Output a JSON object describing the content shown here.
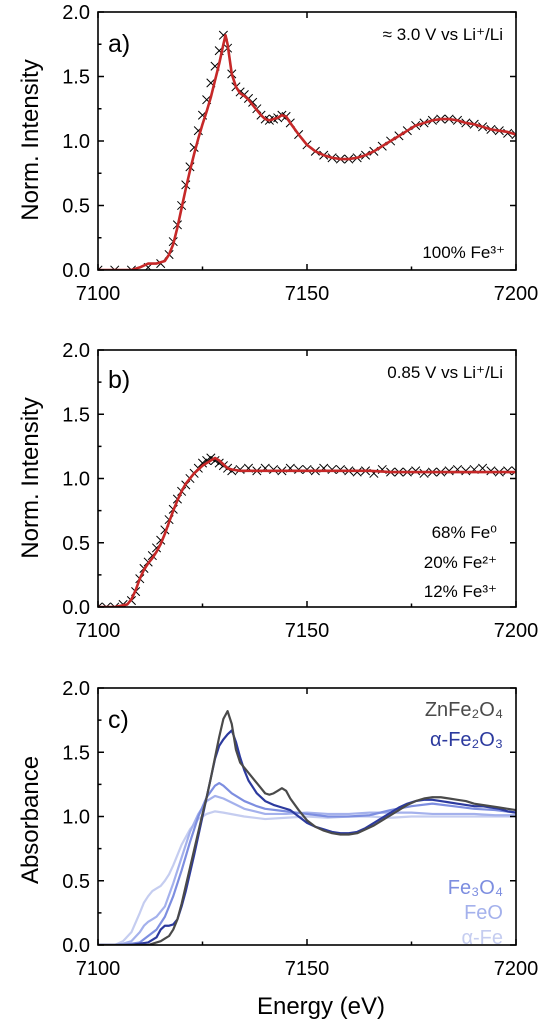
{
  "chart_data": [
    {
      "type": "scatter",
      "panel_label": "a)",
      "ylabel": "Norm. Intensity",
      "xlabel": "",
      "xlim": [
        7100,
        7200
      ],
      "ylim": [
        0,
        2
      ],
      "xticks": [
        "7100",
        "7150",
        "7200"
      ],
      "yticks": [
        "0.0",
        "0.5",
        "1.0",
        "1.5",
        "2.0"
      ],
      "annotations": [
        {
          "text": "≈ 3.0 V vs  Li⁺/Li",
          "position": "top-right"
        },
        {
          "text": "100% Fe³⁺",
          "position": "bottom-right"
        }
      ],
      "series": [
        {
          "style": "markers-x",
          "color": "#000000",
          "x": [
            7100,
            7104,
            7108,
            7112,
            7115,
            7117,
            7118,
            7119,
            7120,
            7121,
            7122,
            7123,
            7124,
            7125,
            7126,
            7127,
            7128,
            7129,
            7130,
            7131,
            7132,
            7133,
            7134,
            7135,
            7136,
            7137,
            7138,
            7139,
            7140,
            7141,
            7142,
            7143,
            7144,
            7145,
            7146,
            7148,
            7150,
            7152,
            7154,
            7156,
            7158,
            7160,
            7162,
            7164,
            7166,
            7168,
            7170,
            7172,
            7174,
            7176,
            7178,
            7180,
            7182,
            7184,
            7186,
            7188,
            7190,
            7192,
            7194,
            7196,
            7198,
            7200
          ],
          "y": [
            0.0,
            0.0,
            0.0,
            0.02,
            0.05,
            0.12,
            0.22,
            0.35,
            0.5,
            0.66,
            0.8,
            0.95,
            1.08,
            1.2,
            1.32,
            1.45,
            1.58,
            1.7,
            1.82,
            1.72,
            1.52,
            1.42,
            1.38,
            1.36,
            1.33,
            1.3,
            1.25,
            1.2,
            1.17,
            1.16,
            1.17,
            1.18,
            1.2,
            1.19,
            1.14,
            1.05,
            0.97,
            0.92,
            0.89,
            0.87,
            0.86,
            0.86,
            0.87,
            0.89,
            0.92,
            0.96,
            1.0,
            1.04,
            1.08,
            1.12,
            1.14,
            1.16,
            1.17,
            1.17,
            1.16,
            1.14,
            1.13,
            1.11,
            1.09,
            1.08,
            1.06,
            1.05
          ]
        },
        {
          "style": "line",
          "color": "#c62828",
          "x": [
            7100,
            7104,
            7108,
            7110,
            7112,
            7114,
            7116,
            7117,
            7118,
            7119,
            7120,
            7121,
            7122,
            7123,
            7124,
            7125,
            7126,
            7127,
            7128,
            7129,
            7130,
            7130.5,
            7131,
            7132,
            7133,
            7134,
            7135,
            7136,
            7137,
            7138,
            7139,
            7140,
            7141,
            7142,
            7143,
            7144,
            7145,
            7146,
            7148,
            7150,
            7152,
            7154,
            7156,
            7158,
            7160,
            7162,
            7164,
            7166,
            7168,
            7170,
            7172,
            7174,
            7176,
            7178,
            7180,
            7182,
            7184,
            7186,
            7188,
            7190,
            7192,
            7194,
            7196,
            7198,
            7200
          ],
          "y": [
            0.0,
            0.0,
            0.0,
            0.02,
            0.05,
            0.05,
            0.07,
            0.12,
            0.2,
            0.33,
            0.48,
            0.63,
            0.77,
            0.9,
            1.02,
            1.13,
            1.23,
            1.34,
            1.47,
            1.6,
            1.75,
            1.82,
            1.75,
            1.52,
            1.42,
            1.37,
            1.35,
            1.32,
            1.28,
            1.24,
            1.2,
            1.17,
            1.16,
            1.17,
            1.18,
            1.2,
            1.19,
            1.14,
            1.05,
            0.97,
            0.92,
            0.89,
            0.87,
            0.86,
            0.86,
            0.87,
            0.89,
            0.92,
            0.96,
            1.0,
            1.04,
            1.08,
            1.12,
            1.14,
            1.16,
            1.17,
            1.17,
            1.16,
            1.14,
            1.13,
            1.11,
            1.09,
            1.08,
            1.07,
            1.05
          ]
        }
      ]
    },
    {
      "type": "scatter",
      "panel_label": "b)",
      "ylabel": "Norm. Intensity",
      "xlabel": "",
      "xlim": [
        7100,
        7200
      ],
      "ylim": [
        0,
        2
      ],
      "xticks": [
        "7100",
        "7150",
        "7200"
      ],
      "yticks": [
        "0.0",
        "0.5",
        "1.0",
        "1.5",
        "2.0"
      ],
      "annotations": [
        {
          "text": "0.85 V vs  Li⁺/Li",
          "position": "top-right"
        },
        {
          "text": "68% Fe⁰",
          "position": "right"
        },
        {
          "text": "20% Fe²⁺",
          "position": "right"
        },
        {
          "text": "12% Fe³⁺",
          "position": "bottom-right"
        }
      ],
      "series": [
        {
          "style": "markers-x",
          "color": "#000000",
          "x": [
            7100,
            7102,
            7104,
            7106,
            7108,
            7109,
            7110,
            7111,
            7112,
            7113,
            7114,
            7115,
            7116,
            7117,
            7118,
            7119,
            7120,
            7121,
            7122,
            7123,
            7124,
            7125,
            7126,
            7127,
            7128,
            7129,
            7130,
            7131,
            7132,
            7134,
            7136,
            7138,
            7140,
            7142,
            7144,
            7146,
            7148,
            7150,
            7152,
            7154,
            7156,
            7158,
            7160,
            7162,
            7164,
            7166,
            7168,
            7170,
            7172,
            7174,
            7176,
            7178,
            7180,
            7182,
            7184,
            7186,
            7188,
            7190,
            7192,
            7194,
            7196,
            7198,
            7200
          ],
          "y": [
            0.0,
            0.0,
            0.0,
            0.02,
            0.05,
            0.12,
            0.22,
            0.3,
            0.35,
            0.4,
            0.46,
            0.52,
            0.6,
            0.68,
            0.76,
            0.84,
            0.9,
            0.95,
            1.0,
            1.04,
            1.08,
            1.12,
            1.14,
            1.16,
            1.14,
            1.12,
            1.1,
            1.08,
            1.06,
            1.07,
            1.08,
            1.06,
            1.08,
            1.07,
            1.06,
            1.08,
            1.07,
            1.07,
            1.06,
            1.08,
            1.07,
            1.07,
            1.06,
            1.05,
            1.06,
            1.04,
            1.07,
            1.05,
            1.05,
            1.05,
            1.06,
            1.04,
            1.05,
            1.05,
            1.06,
            1.07,
            1.06,
            1.07,
            1.08,
            1.06,
            1.05,
            1.06,
            1.06
          ]
        },
        {
          "style": "line",
          "color": "#c62828",
          "x": [
            7100,
            7104,
            7107,
            7108,
            7109,
            7110,
            7111,
            7112,
            7113,
            7114,
            7115,
            7116,
            7117,
            7118,
            7119,
            7120,
            7121,
            7122,
            7123,
            7124,
            7125,
            7126,
            7127,
            7128,
            7129,
            7130,
            7131,
            7132,
            7134,
            7136,
            7140,
            7145,
            7150,
            7155,
            7160,
            7165,
            7170,
            7175,
            7180,
            7185,
            7190,
            7195,
            7200
          ],
          "y": [
            0.0,
            0.0,
            0.02,
            0.06,
            0.13,
            0.22,
            0.29,
            0.34,
            0.38,
            0.43,
            0.49,
            0.57,
            0.66,
            0.75,
            0.83,
            0.9,
            0.96,
            1.0,
            1.04,
            1.07,
            1.1,
            1.12,
            1.14,
            1.16,
            1.14,
            1.11,
            1.08,
            1.07,
            1.06,
            1.06,
            1.06,
            1.06,
            1.06,
            1.06,
            1.06,
            1.06,
            1.05,
            1.05,
            1.05,
            1.05,
            1.05,
            1.05,
            1.05
          ]
        }
      ]
    },
    {
      "type": "line",
      "panel_label": "c)",
      "ylabel": "Absorbance",
      "xlabel": "Energy (eV)",
      "xlim": [
        7100,
        7200
      ],
      "ylim": [
        0,
        2
      ],
      "xticks": [
        "7100",
        "7150",
        "7200"
      ],
      "yticks": [
        "0.0",
        "0.5",
        "1.0",
        "1.5",
        "2.0"
      ],
      "legend_top": [
        "ZnFe₂O₄",
        "α-Fe₂O₃"
      ],
      "legend_bottom": [
        "Fe₃O₄",
        "FeO",
        "α-Fe"
      ],
      "series": [
        {
          "name": "α-Fe",
          "color": "#c5cdf0",
          "x": [
            7100,
            7104,
            7106,
            7108,
            7110,
            7111,
            7112,
            7113,
            7114,
            7115,
            7116,
            7117,
            7118,
            7119,
            7120,
            7122,
            7124,
            7126,
            7128,
            7130,
            7135,
            7140,
            7145,
            7150,
            7155,
            7160,
            7165,
            7170,
            7175,
            7180,
            7185,
            7190,
            7195,
            7200
          ],
          "y": [
            0.0,
            0.0,
            0.03,
            0.1,
            0.25,
            0.33,
            0.38,
            0.42,
            0.44,
            0.46,
            0.5,
            0.55,
            0.62,
            0.7,
            0.78,
            0.9,
            0.98,
            1.02,
            1.04,
            1.03,
            1.0,
            0.98,
            0.99,
            1.0,
            0.99,
            1.0,
            1.0,
            0.99,
            1.0,
            1.0,
            1.0,
            1.0,
            1.0,
            1.0
          ]
        },
        {
          "name": "FeO",
          "color": "#a4b1ec",
          "x": [
            7100,
            7104,
            7106,
            7108,
            7110,
            7111,
            7112,
            7113,
            7114,
            7116,
            7118,
            7120,
            7122,
            7124,
            7126,
            7128,
            7130,
            7135,
            7140,
            7145,
            7150,
            7155,
            7160,
            7165,
            7170,
            7175,
            7180,
            7185,
            7190,
            7195,
            7200
          ],
          "y": [
            0.0,
            0.0,
            0.01,
            0.03,
            0.1,
            0.15,
            0.18,
            0.2,
            0.22,
            0.3,
            0.48,
            0.68,
            0.88,
            1.02,
            1.12,
            1.16,
            1.14,
            1.06,
            1.02,
            1.02,
            1.03,
            1.02,
            1.02,
            1.03,
            1.03,
            1.03,
            1.02,
            1.02,
            1.02,
            1.01,
            1.01
          ]
        },
        {
          "name": "Fe₃O₄",
          "color": "#7d8ee0",
          "x": [
            7100,
            7106,
            7110,
            7112,
            7114,
            7116,
            7118,
            7120,
            7122,
            7124,
            7126,
            7128,
            7129,
            7130,
            7132,
            7135,
            7138,
            7140,
            7145,
            7150,
            7155,
            7160,
            7165,
            7170,
            7175,
            7180,
            7185,
            7190,
            7195,
            7200
          ],
          "y": [
            0.0,
            0.0,
            0.02,
            0.07,
            0.12,
            0.22,
            0.38,
            0.58,
            0.8,
            1.0,
            1.15,
            1.24,
            1.26,
            1.24,
            1.18,
            1.12,
            1.08,
            1.06,
            1.04,
            1.02,
            1.0,
            1.0,
            1.01,
            1.05,
            1.08,
            1.1,
            1.08,
            1.06,
            1.05,
            1.03
          ]
        },
        {
          "name": "α-Fe₂O₃",
          "color": "#2c3a9e",
          "x": [
            7100,
            7108,
            7112,
            7114,
            7115,
            7116,
            7117,
            7118,
            7119,
            7120,
            7121,
            7122,
            7123,
            7124,
            7125,
            7126,
            7127,
            7128,
            7129,
            7130,
            7131,
            7132,
            7133,
            7134,
            7135,
            7136,
            7138,
            7140,
            7142,
            7144,
            7146,
            7148,
            7150,
            7152,
            7154,
            7156,
            7158,
            7160,
            7162,
            7164,
            7166,
            7168,
            7170,
            7172,
            7174,
            7176,
            7178,
            7180,
            7182,
            7184,
            7186,
            7188,
            7190,
            7192,
            7194,
            7196,
            7198,
            7200
          ],
          "y": [
            0.0,
            0.0,
            0.02,
            0.06,
            0.12,
            0.15,
            0.15,
            0.16,
            0.2,
            0.3,
            0.42,
            0.56,
            0.7,
            0.85,
            1.0,
            1.15,
            1.3,
            1.45,
            1.55,
            1.6,
            1.64,
            1.67,
            1.58,
            1.46,
            1.36,
            1.28,
            1.18,
            1.12,
            1.09,
            1.07,
            1.05,
            1.0,
            0.95,
            0.92,
            0.9,
            0.88,
            0.87,
            0.87,
            0.88,
            0.91,
            0.95,
            0.99,
            1.03,
            1.07,
            1.1,
            1.12,
            1.13,
            1.13,
            1.12,
            1.11,
            1.1,
            1.09,
            1.08,
            1.08,
            1.07,
            1.06,
            1.04,
            1.03
          ]
        },
        {
          "name": "ZnFe₂O₄",
          "color": "#4a4a4a",
          "x": [
            7100,
            7108,
            7112,
            7115,
            7116,
            7117,
            7118,
            7119,
            7120,
            7121,
            7122,
            7123,
            7124,
            7125,
            7126,
            7127,
            7128,
            7129,
            7130,
            7131,
            7132,
            7133,
            7134,
            7135,
            7136,
            7137,
            7138,
            7139,
            7140,
            7141,
            7142,
            7143,
            7144,
            7145,
            7146,
            7148,
            7150,
            7152,
            7154,
            7156,
            7158,
            7160,
            7162,
            7164,
            7166,
            7168,
            7170,
            7172,
            7174,
            7176,
            7178,
            7180,
            7182,
            7184,
            7186,
            7188,
            7190,
            7192,
            7194,
            7196,
            7198,
            7200
          ],
          "y": [
            0.0,
            0.0,
            0.0,
            0.03,
            0.05,
            0.07,
            0.12,
            0.2,
            0.32,
            0.46,
            0.6,
            0.74,
            0.88,
            1.02,
            1.15,
            1.3,
            1.46,
            1.62,
            1.76,
            1.82,
            1.72,
            1.52,
            1.42,
            1.38,
            1.34,
            1.3,
            1.26,
            1.22,
            1.18,
            1.17,
            1.18,
            1.2,
            1.22,
            1.2,
            1.14,
            1.05,
            0.97,
            0.92,
            0.89,
            0.87,
            0.86,
            0.86,
            0.87,
            0.9,
            0.93,
            0.97,
            1.01,
            1.05,
            1.09,
            1.12,
            1.14,
            1.15,
            1.15,
            1.14,
            1.13,
            1.12,
            1.1,
            1.09,
            1.08,
            1.07,
            1.06,
            1.05
          ]
        }
      ]
    }
  ]
}
